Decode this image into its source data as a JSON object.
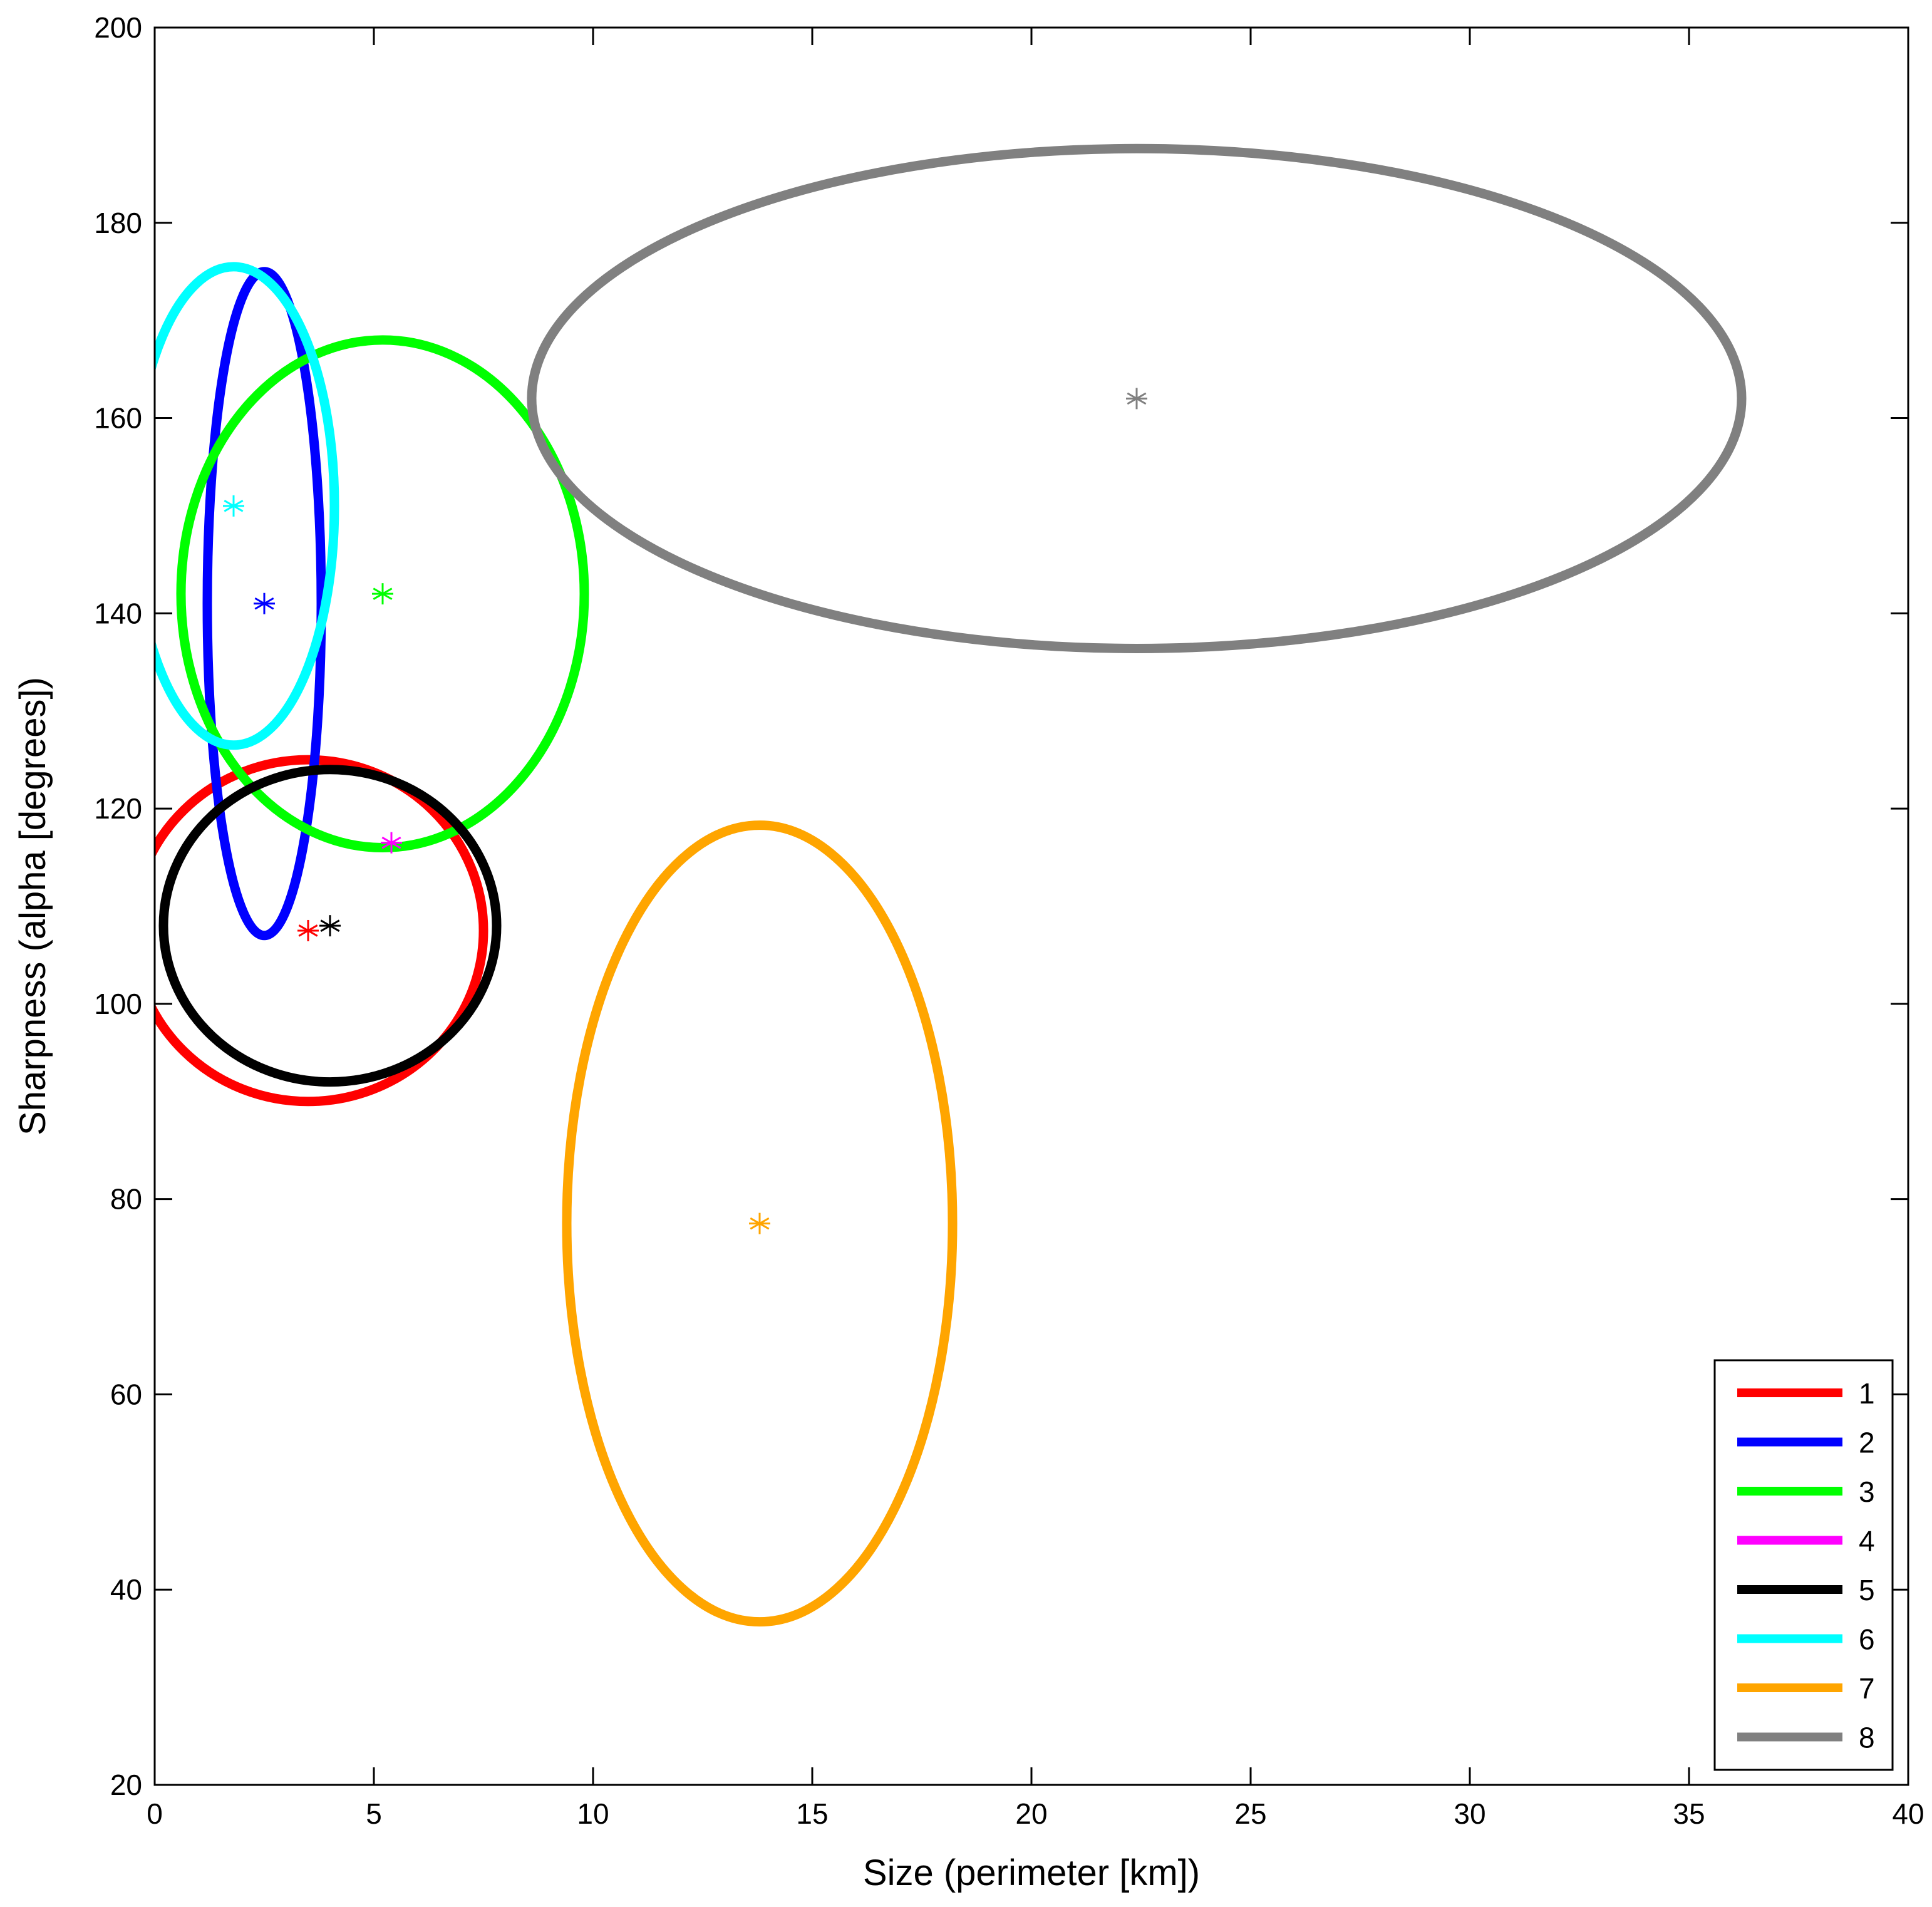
{
  "chart_data": {
    "type": "scatter",
    "title": "",
    "xlabel": "Size (perimeter [km])",
    "ylabel": "Sharpness (alpha [degrees])",
    "xlim": [
      0,
      40
    ],
    "ylim": [
      20,
      200
    ],
    "xticks": [
      0,
      5,
      10,
      15,
      20,
      25,
      30,
      35,
      40
    ],
    "yticks": [
      20,
      40,
      60,
      80,
      100,
      120,
      140,
      160,
      180,
      200
    ],
    "grid": false,
    "legend_position": "bottom-right",
    "marker": "asterisk",
    "series": [
      {
        "name": "1",
        "color": "#ff0000",
        "center": [
          3.5,
          107.5
        ],
        "ellipse_radii": [
          4.0,
          17.5
        ]
      },
      {
        "name": "2",
        "color": "#0000ff",
        "center": [
          2.5,
          141.0
        ],
        "ellipse_radii": [
          1.3,
          34.0
        ]
      },
      {
        "name": "3",
        "color": "#00ff00",
        "center": [
          5.2,
          142.0
        ],
        "ellipse_radii": [
          4.6,
          26.0
        ]
      },
      {
        "name": "4",
        "color": "#ff00ff",
        "center": [
          5.4,
          116.5
        ],
        "ellipse_radii": null
      },
      {
        "name": "5",
        "color": "#000000",
        "center": [
          4.0,
          108.0
        ],
        "ellipse_radii": [
          3.8,
          16.0
        ]
      },
      {
        "name": "6",
        "color": "#00ffff",
        "center": [
          1.8,
          151.0
        ],
        "ellipse_radii": [
          2.3,
          24.5
        ]
      },
      {
        "name": "7",
        "color": "#ffa500",
        "center": [
          13.8,
          77.5
        ],
        "ellipse_radii": [
          4.4,
          40.8
        ]
      },
      {
        "name": "8",
        "color": "#808080",
        "center": [
          22.4,
          162.0
        ],
        "ellipse_radii": [
          13.8,
          25.6
        ]
      }
    ]
  }
}
